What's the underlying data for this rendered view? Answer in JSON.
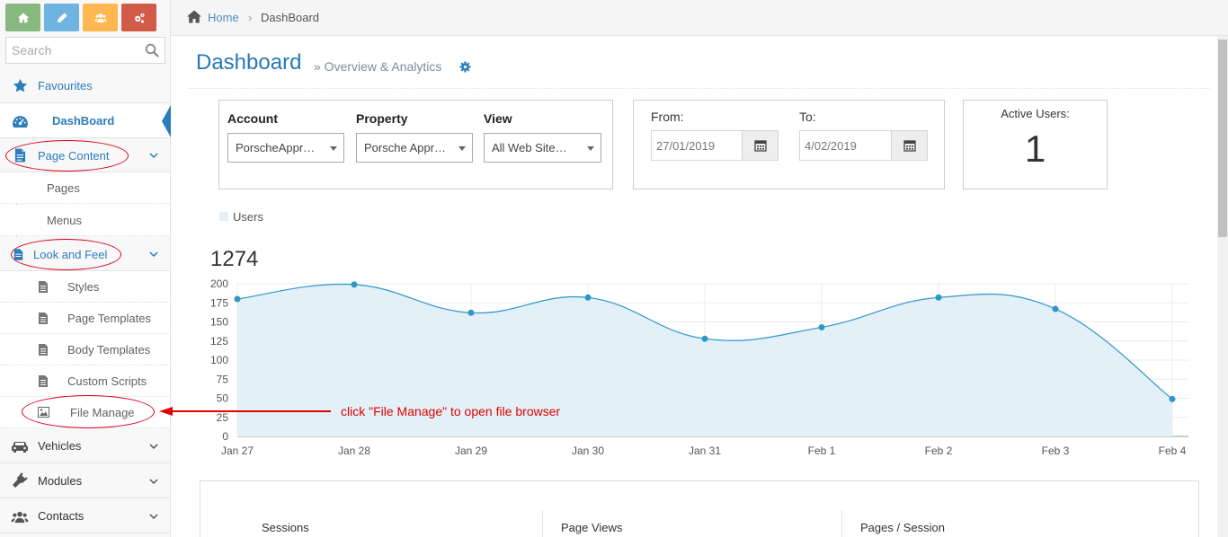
{
  "colors": {
    "shortcut_green": "#87b87f",
    "shortcut_blue": "#6fb3e0",
    "shortcut_orange": "#ffb752",
    "shortcut_red": "#d15b47",
    "accent_blue": "#2b7dbc",
    "chart_line": "#2e97c8",
    "chart_fill": "#e4f0f7",
    "annotation_red": "#e00000"
  },
  "sidebar": {
    "shortcuts": [
      {
        "icon": "home-icon"
      },
      {
        "icon": "pencil-icon"
      },
      {
        "icon": "users-icon"
      },
      {
        "icon": "cogs-icon"
      }
    ],
    "search_placeholder": "Search",
    "items": {
      "favourites": "Favourites",
      "dashboard": "DashBoard",
      "page_content": "Page Content",
      "pages": "Pages",
      "menus": "Menus",
      "look_and_feel": "Look and Feel",
      "styles": "Styles",
      "page_templates": "Page Templates",
      "body_templates": "Body Templates",
      "custom_scripts": "Custom Scripts",
      "file_manage": "File Manage",
      "vehicles": "Vehicles",
      "modules": "Modules",
      "contacts": "Contacts"
    }
  },
  "breadcrumb": {
    "home": "Home",
    "separator": "›",
    "current": "DashBoard"
  },
  "header": {
    "title": "Dashboard",
    "subtitle": "» Overview & Analytics"
  },
  "filters": {
    "account_label": "Account",
    "account_value": "PorscheAppr…",
    "property_label": "Property",
    "property_value": "Porsche Appr…",
    "view_label": "View",
    "view_value": "All Web Site…",
    "from_label": "From:",
    "from_value": "27/01/2019",
    "to_label": "To:",
    "to_value": "4/02/2019"
  },
  "active_users": {
    "label": "Active Users:",
    "value": "1"
  },
  "legend": {
    "users": "Users"
  },
  "total_users": "1274",
  "annotation_text": "click \"File Manage\" to open file browser",
  "stats": {
    "sessions": "Sessions",
    "page_views": "Page Views",
    "pages_per_session": "Pages / Session"
  },
  "chart_data": {
    "type": "area",
    "x": [
      "Jan 27",
      "Jan 28",
      "Jan 29",
      "Jan 30",
      "Jan 31",
      "Feb 1",
      "Feb 2",
      "Feb 3",
      "Feb 4"
    ],
    "series": [
      {
        "name": "Users",
        "values": [
          180,
          199,
          162,
          182,
          128,
          143,
          182,
          167,
          49
        ]
      }
    ],
    "y_ticks": [
      0,
      25,
      50,
      75,
      100,
      125,
      150,
      175,
      200
    ],
    "ylim": [
      0,
      200
    ],
    "grid": true
  }
}
